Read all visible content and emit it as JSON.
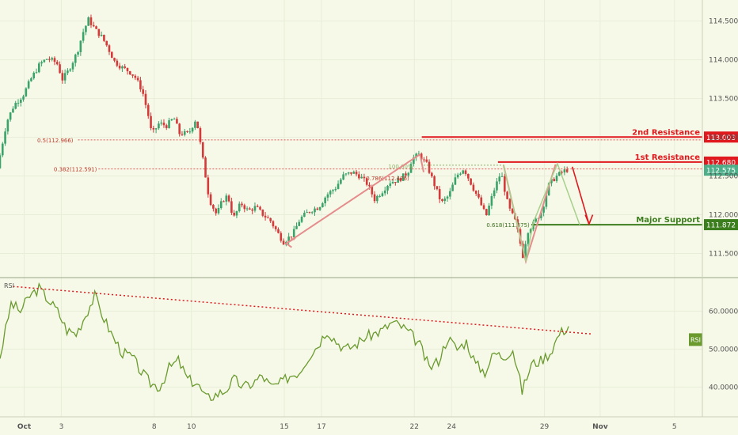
{
  "chart_data": [
    {
      "panel": "price",
      "type": "candlestick",
      "y_axis": {
        "ticks": [
          "114.500",
          "114.000",
          "113.500",
          "113.000",
          "112.500",
          "112.000",
          "111.500"
        ],
        "tick_values": [
          114.5,
          114.0,
          113.5,
          113.0,
          112.5,
          112.0,
          111.5
        ],
        "ylim": [
          111.25,
          114.67
        ]
      },
      "x_axis": {
        "ticks": [
          "Oct",
          "3",
          "8",
          "10",
          "15",
          "17",
          "22",
          "24",
          "29",
          "Nov",
          "5"
        ],
        "tick_days": [
          1,
          3,
          8,
          10,
          15,
          17,
          22,
          24,
          29,
          32,
          36
        ],
        "xlim": [
          -0.3,
          37.5
        ]
      },
      "close_path": [
        [
          -0.3,
          112.6
        ],
        [
          0.2,
          113.2
        ],
        [
          0.6,
          113.42
        ],
        [
          1.1,
          113.55
        ],
        [
          1.5,
          113.75
        ],
        [
          2.0,
          113.95
        ],
        [
          2.4,
          114.02
        ],
        [
          2.9,
          113.96
        ],
        [
          3.2,
          113.75
        ],
        [
          3.5,
          113.85
        ],
        [
          4.0,
          114.1
        ],
        [
          4.3,
          114.35
        ],
        [
          4.6,
          114.52
        ],
        [
          5.0,
          114.38
        ],
        [
          5.3,
          114.3
        ],
        [
          5.6,
          114.18
        ],
        [
          6.0,
          113.98
        ],
        [
          6.4,
          113.9
        ],
        [
          6.8,
          113.85
        ],
        [
          7.1,
          113.78
        ],
        [
          7.5,
          113.6
        ],
        [
          7.9,
          113.2
        ],
        [
          8.0,
          113.03
        ],
        [
          8.4,
          113.18
        ],
        [
          8.8,
          113.15
        ],
        [
          9.2,
          113.25
        ],
        [
          9.5,
          113.05
        ],
        [
          10.0,
          113.05
        ],
        [
          10.4,
          113.25
        ],
        [
          10.8,
          112.65
        ],
        [
          11.1,
          112.2
        ],
        [
          11.5,
          112.0
        ],
        [
          11.8,
          112.18
        ],
        [
          12.1,
          112.25
        ],
        [
          12.4,
          111.95
        ],
        [
          12.8,
          112.15
        ],
        [
          13.2,
          112.05
        ],
        [
          13.6,
          112.1
        ],
        [
          14.0,
          112.0
        ],
        [
          14.4,
          111.92
        ],
        [
          14.9,
          111.72
        ],
        [
          15.1,
          111.65
        ],
        [
          15.6,
          111.75
        ],
        [
          16.0,
          111.95
        ],
        [
          16.5,
          112.05
        ],
        [
          17.0,
          112.1
        ],
        [
          17.4,
          112.25
        ],
        [
          17.9,
          112.35
        ],
        [
          18.3,
          112.5
        ],
        [
          18.8,
          112.55
        ],
        [
          19.2,
          112.5
        ],
        [
          19.6,
          112.4
        ],
        [
          20.0,
          112.2
        ],
        [
          20.4,
          112.3
        ],
        [
          20.8,
          112.42
        ],
        [
          21.3,
          112.45
        ],
        [
          21.8,
          112.55
        ],
        [
          22.0,
          112.72
        ],
        [
          22.4,
          112.78
        ],
        [
          22.8,
          112.65
        ],
        [
          23.2,
          112.4
        ],
        [
          23.6,
          112.15
        ],
        [
          24.0,
          112.25
        ],
        [
          24.4,
          112.5
        ],
        [
          24.8,
          112.6
        ],
        [
          25.2,
          112.4
        ],
        [
          25.6,
          112.2
        ],
        [
          26.0,
          111.98
        ],
        [
          26.4,
          112.3
        ],
        [
          26.8,
          112.55
        ],
        [
          27.2,
          112.1
        ],
        [
          27.6,
          111.9
        ],
        [
          28.0,
          111.45
        ],
        [
          28.2,
          111.78
        ],
        [
          28.6,
          111.9
        ],
        [
          29.0,
          112.05
        ],
        [
          29.4,
          112.4
        ],
        [
          29.8,
          112.5
        ],
        [
          30.3,
          112.58
        ]
      ],
      "fib_levels": [
        {
          "label": "0.5(112.966)",
          "value": 112.966
        },
        {
          "label": "0.382(112.591)",
          "value": 112.591
        },
        {
          "label": "0.786(112.476)",
          "value": 112.476
        },
        {
          "label": "0.618(111.875)",
          "value": 111.875
        }
      ],
      "fib_100_label": "100.00%",
      "levels": [
        {
          "name": "2nd Resistance",
          "value": 113.003,
          "color": "#e0191e"
        },
        {
          "name": "1st Resistance",
          "value": 112.68,
          "color": "#e0191e"
        },
        {
          "name": "Major Support",
          "value": 111.872,
          "color": "#3c7d1e"
        }
      ],
      "price_badges": [
        {
          "text": "113.003",
          "value": 113.003,
          "color": "#e0191e"
        },
        {
          "text": "112.680",
          "value": 112.68,
          "color": "#e0191e"
        },
        {
          "text": "112.575",
          "value": 112.575,
          "color": "#4caf8a"
        },
        {
          "text": "111.872",
          "value": 111.872,
          "color": "#3c7d1e"
        }
      ],
      "colors": {
        "up": "#3aa36a",
        "down": "#d43a3a",
        "grid": "#e8edd9",
        "dotted": "#e05a5a"
      }
    },
    {
      "panel": "rsi",
      "type": "line",
      "title": "RSI",
      "badge": "RSI",
      "y_axis": {
        "ticks": [
          "60.0000",
          "50.0000",
          "40.0000"
        ],
        "tick_values": [
          60,
          50,
          40
        ],
        "ylim": [
          33,
          68
        ]
      },
      "series": [
        {
          "x": [
            -0.3,
            0.3,
            0.8,
            1.3,
            1.8,
            2.3,
            2.8,
            3.3,
            3.8,
            4.3,
            4.8,
            5.3,
            5.8,
            6.3,
            6.8,
            7.3,
            7.8,
            8.3,
            8.8,
            9.3,
            9.8,
            10.3,
            10.8,
            11.3,
            11.8,
            12.3,
            12.8,
            13.3,
            13.8,
            14.3,
            14.8,
            15.3,
            15.8,
            16.3,
            16.8,
            17.3,
            17.8,
            18.3,
            18.8,
            19.3,
            19.8,
            20.3,
            20.8,
            21.3,
            21.8,
            22.3,
            22.8,
            23.3,
            23.8,
            24.3,
            24.8,
            25.3,
            25.8,
            26.3,
            26.8,
            27.3,
            27.8,
            28.3,
            28.8,
            29.3,
            29.8,
            30.3
          ],
          "values": [
            48,
            62,
            60,
            64,
            66,
            63,
            60,
            55,
            54,
            59,
            64,
            58,
            53,
            49,
            48,
            44,
            41,
            40,
            45,
            47,
            42,
            41,
            37,
            38,
            39,
            42,
            40,
            41,
            43,
            40,
            41,
            43,
            44,
            48,
            51,
            55,
            52,
            50,
            51,
            53,
            54,
            55,
            57,
            56,
            54,
            51,
            45,
            47,
            53,
            50,
            52,
            46,
            44,
            49,
            48,
            50,
            39,
            46,
            47,
            49,
            54,
            56
          ],
          "color": "#6a9a2e"
        }
      ],
      "trendline": {
        "x": [
          0.4,
          31.5
        ],
        "values": [
          66.5,
          54
        ]
      }
    }
  ]
}
